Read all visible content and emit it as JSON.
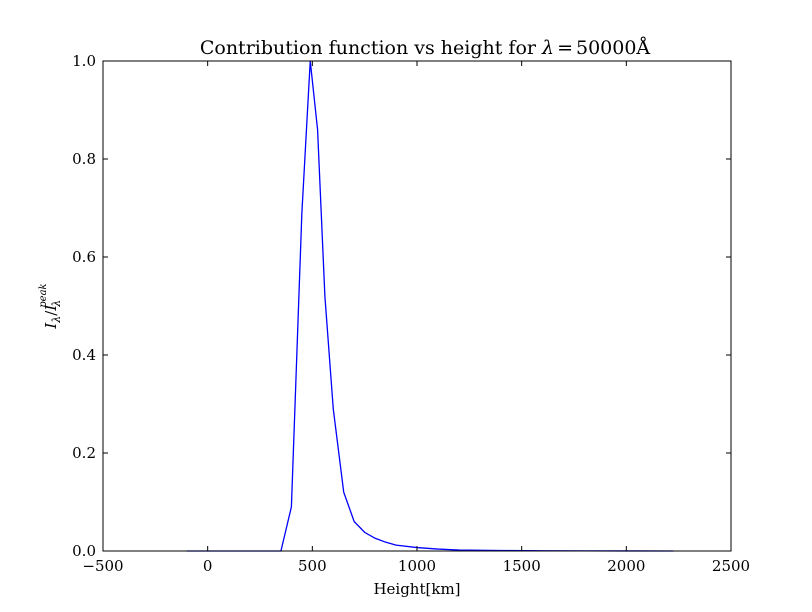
{
  "chart_data": {
    "type": "line",
    "title": "Contribution function vs height for λ = 50000Å",
    "title_parts": {
      "main": "Contribution function vs height for ",
      "lambda": "λ",
      "equals": "=",
      "value": "50000Å"
    },
    "xlabel": "Height[km]",
    "ylabel_parts": {
      "I": "I",
      "sub": "λ",
      "slash": "/",
      "I2": "I",
      "sub2": "λ",
      "sup2": "peak"
    },
    "xlim": [
      -500,
      2500
    ],
    "ylim": [
      0.0,
      1.0
    ],
    "xticks": [
      -500,
      0,
      500,
      1000,
      1500,
      2000,
      2500
    ],
    "yticks": [
      0.0,
      0.2,
      0.4,
      0.6,
      0.8,
      1.0
    ],
    "xtick_labels": [
      "−500",
      "0",
      "500",
      "1000",
      "1500",
      "2000",
      "2500"
    ],
    "ytick_labels": [
      "0.0",
      "0.2",
      "0.4",
      "0.6",
      "0.8",
      "1.0"
    ],
    "grid": false,
    "series": [
      {
        "color": "#0000ff",
        "x": [
          -100,
          0,
          100,
          200,
          300,
          350,
          400,
          450,
          490,
          525,
          560,
          600,
          650,
          700,
          750,
          800,
          850,
          900,
          1000,
          1100,
          1200,
          1400,
          1600,
          1800,
          2000,
          2225
        ],
        "y": [
          0.0,
          0.0,
          0.0,
          0.0,
          0.0,
          0.0,
          0.09,
          0.69,
          1.0,
          0.86,
          0.52,
          0.29,
          0.12,
          0.06,
          0.038,
          0.026,
          0.018,
          0.012,
          0.007,
          0.004,
          0.002,
          0.001,
          0.0005,
          0.0002,
          0.0001,
          0.0
        ]
      }
    ]
  }
}
